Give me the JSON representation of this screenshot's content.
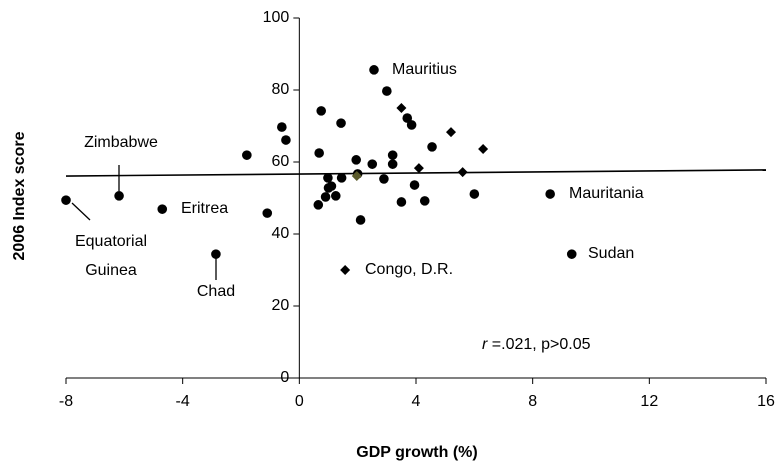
{
  "chart_data": {
    "type": "scatter",
    "x_label": "GDP growth (%)",
    "y_label": "2006 Index score",
    "xlim": [
      -8,
      16
    ],
    "ylim": [
      0,
      100
    ],
    "xticks": [
      -8,
      -4,
      0,
      4,
      8,
      12,
      16
    ],
    "yticks": [
      0,
      20,
      40,
      60,
      80,
      100
    ],
    "series": [
      {
        "marker": "circle",
        "color": "#000000",
        "x": [
          -8,
          -6.18,
          -4.7,
          -2.86,
          -1.1,
          -1.8,
          -0.6,
          -0.46,
          0.75,
          1.43,
          0.68,
          2.56,
          3.0,
          3.7,
          3.85,
          1.95,
          2.5,
          3.2,
          3.2,
          2.0,
          0.98,
          1.1,
          1.45,
          0.65,
          0.9,
          1.25,
          1.0,
          2.9,
          2.1,
          3.5,
          3.95,
          4.3,
          4.55,
          6.0,
          8.6,
          9.34
        ],
        "values": [
          49.4,
          50.6,
          46.9,
          34.4,
          45.8,
          61.9,
          69.7,
          66.1,
          74.2,
          70.8,
          62.5,
          85.6,
          79.7,
          72.2,
          70.3,
          60.6,
          59.4,
          61.9,
          59.4,
          56.7,
          55.6,
          53.3,
          55.6,
          48.1,
          50.3,
          50.6,
          52.8,
          55.3,
          43.9,
          48.9,
          53.6,
          49.2,
          64.2,
          51.1,
          51.1,
          34.4
        ]
      },
      {
        "marker": "diamond",
        "color": "#000000",
        "x": [
          1.57,
          3.5,
          5.2,
          6.3,
          5.6,
          4.1
        ],
        "values": [
          30.0,
          75.0,
          68.3,
          63.6,
          57.2,
          58.3
        ]
      },
      {
        "marker": "diamond",
        "color": "#5a5a2a",
        "x": [
          1.97
        ],
        "values": [
          56.1
        ]
      }
    ],
    "trendline": {
      "x": [
        -8,
        16
      ],
      "values": [
        56.1,
        57.8
      ]
    },
    "annotations": [
      {
        "text": "Mauritius"
      },
      {
        "text": "Zimbabwe"
      },
      {
        "text": "Eritrea"
      },
      {
        "lines": [
          "Equatorial",
          "Guinea"
        ]
      },
      {
        "text": "Chad"
      },
      {
        "text": "Mauritania"
      },
      {
        "text": "Sudan"
      },
      {
        "text": "Congo, D.R."
      }
    ],
    "stat_label": {
      "symbol": "r",
      "text": " =.021, p>0.05"
    }
  }
}
